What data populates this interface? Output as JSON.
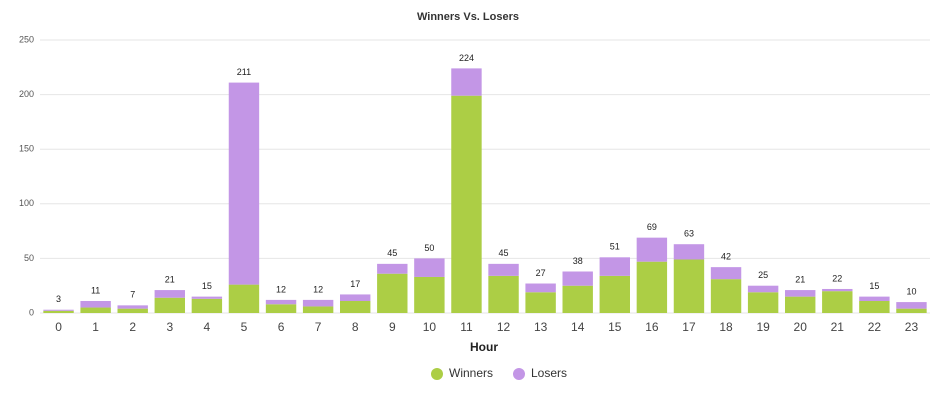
{
  "chart_data": {
    "type": "stacked_bar",
    "title": "Winners Vs. Losers",
    "x_label": "Hour",
    "categories": [
      "0",
      "1",
      "2",
      "3",
      "4",
      "5",
      "6",
      "7",
      "8",
      "9",
      "10",
      "11",
      "12",
      "13",
      "14",
      "15",
      "16",
      "17",
      "18",
      "19",
      "20",
      "21",
      "22",
      "23"
    ],
    "series": [
      {
        "name": "Winners",
        "color": "#acce45",
        "values": [
          2,
          5,
          4,
          14,
          13,
          26,
          8,
          6,
          11,
          36,
          33,
          199,
          34,
          19,
          25,
          34,
          47,
          49,
          31,
          19,
          15,
          20,
          11,
          4
        ]
      },
      {
        "name": "Losers",
        "color": "#c396e6",
        "values": [
          1,
          6,
          3,
          7,
          2,
          185,
          4,
          6,
          6,
          9,
          17,
          25,
          11,
          8,
          13,
          17,
          22,
          14,
          11,
          6,
          6,
          2,
          4,
          6
        ]
      }
    ],
    "stack_labels": [
      3,
      11,
      7,
      21,
      15,
      211,
      12,
      12,
      17,
      45,
      50,
      224,
      45,
      27,
      38,
      51,
      69,
      63,
      42,
      25,
      21,
      22,
      15,
      10
    ],
    "ylim": [
      0,
      250
    ],
    "yticks": [
      0,
      50,
      100,
      150,
      200,
      250
    ],
    "grid": true,
    "legend": "bottom"
  }
}
